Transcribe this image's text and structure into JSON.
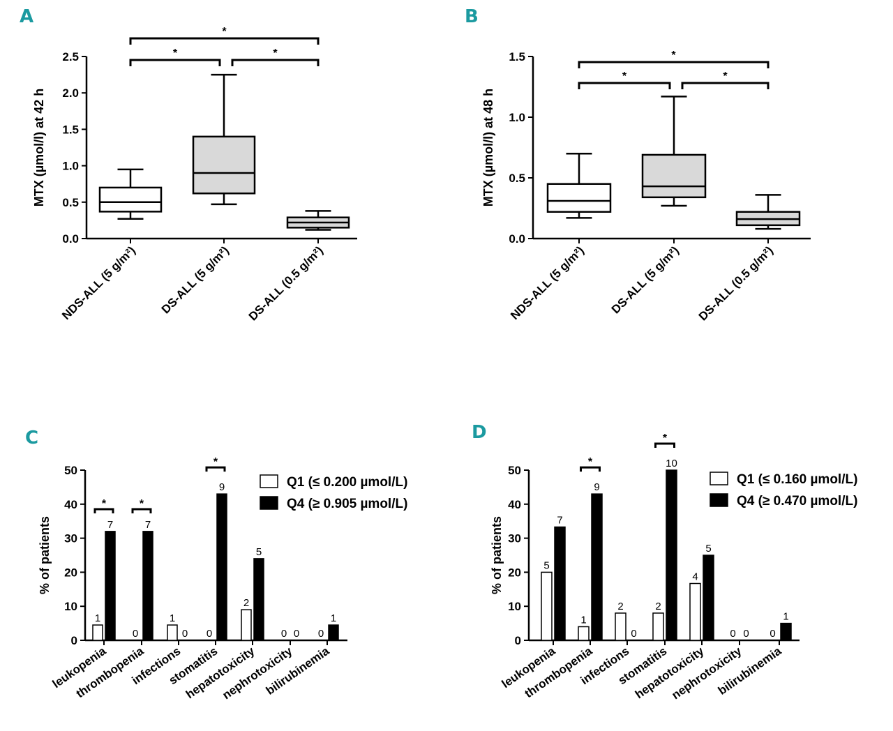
{
  "colors": {
    "panel_letter": "#1b9aa0",
    "box_fill_ds": "#d9d9d9",
    "bar_q4": "#000000",
    "bar_q1": "#ffffff"
  },
  "chart_data": [
    {
      "panel": "A",
      "type": "box",
      "ylabel": "MTX (µmol/l) at 42 h",
      "ylim": [
        0,
        2.5
      ],
      "yticks": [
        "0.0",
        "0.5",
        "1.0",
        "1.5",
        "2.0",
        "2.5"
      ],
      "categories": [
        "NDS-ALL (5 g/m²)",
        "DS-ALL (5 g/m²)",
        "DS-ALL (0.5 g/m²)"
      ],
      "boxes": [
        {
          "min": 0.27,
          "q1": 0.37,
          "median": 0.5,
          "q3": 0.7,
          "max": 0.95,
          "shaded": false
        },
        {
          "min": 0.47,
          "q1": 0.62,
          "median": 0.9,
          "q3": 1.4,
          "max": 2.25,
          "shaded": true
        },
        {
          "min": 0.12,
          "q1": 0.15,
          "median": 0.22,
          "q3": 0.29,
          "max": 0.38,
          "shaded": true
        }
      ],
      "significance": [
        {
          "from": 0,
          "to": 2,
          "label": "*"
        },
        {
          "from": 0,
          "to": 1,
          "label": "*"
        },
        {
          "from": 1,
          "to": 2,
          "label": "*"
        }
      ]
    },
    {
      "panel": "B",
      "type": "box",
      "ylabel": "MTX (µmol/l) at 48 h",
      "ylim": [
        0,
        1.5
      ],
      "yticks": [
        "0.0",
        "0.5",
        "1.0",
        "1.5"
      ],
      "categories": [
        "NDS-ALL (5 g/m²)",
        "DS-ALL (5 g/m²)",
        "DS-ALL (0.5 g/m²)"
      ],
      "boxes": [
        {
          "min": 0.17,
          "q1": 0.22,
          "median": 0.31,
          "q3": 0.45,
          "max": 0.7,
          "shaded": false
        },
        {
          "min": 0.27,
          "q1": 0.34,
          "median": 0.43,
          "q3": 0.69,
          "max": 1.17,
          "shaded": true
        },
        {
          "min": 0.08,
          "q1": 0.11,
          "median": 0.16,
          "q3": 0.22,
          "max": 0.36,
          "shaded": true
        }
      ],
      "significance": [
        {
          "from": 0,
          "to": 2,
          "label": "*"
        },
        {
          "from": 0,
          "to": 1,
          "label": "*"
        },
        {
          "from": 1,
          "to": 2,
          "label": "*"
        }
      ]
    },
    {
      "panel": "C",
      "type": "bar",
      "ylabel": "% of patients",
      "ylim": [
        0,
        50
      ],
      "yticks": [
        "0",
        "10",
        "20",
        "30",
        "40",
        "50"
      ],
      "categories": [
        "leukopenia",
        "thrombopenia",
        "infections",
        "stomatitis",
        "hepatotoxicity",
        "nephrotoxicity",
        "bilirubinemia"
      ],
      "series": [
        {
          "name": "Q1 (≤ 0.200 µmol/L)",
          "values": [
            4.5,
            0,
            4.5,
            0,
            9,
            0,
            0
          ],
          "counts": [
            "1",
            "0",
            "1",
            "0",
            "2",
            "0",
            "0"
          ]
        },
        {
          "name": "Q4 (≥ 0.905 µmol/L)",
          "values": [
            32,
            32,
            0,
            43,
            24,
            0,
            4.5
          ],
          "counts": [
            "7",
            "7",
            "0",
            "9",
            "5",
            "0",
            "1"
          ]
        }
      ],
      "significance": [
        0,
        1,
        3
      ],
      "star": "*"
    },
    {
      "panel": "D",
      "type": "bar",
      "ylabel": "% of patients",
      "ylim": [
        0,
        50
      ],
      "yticks": [
        "0",
        "10",
        "20",
        "30",
        "40",
        "50"
      ],
      "categories": [
        "leukopenia",
        "thrombopenia",
        "infections",
        "stomatitis",
        "hepatotoxicity",
        "nephrotoxicity",
        "bilirubinemia"
      ],
      "series": [
        {
          "name": "Q1 (≤ 0.160 µmol/L)",
          "values": [
            20,
            4,
            8,
            8,
            16.7,
            0,
            0
          ],
          "counts": [
            "5",
            "1",
            "2",
            "2",
            "4",
            "0",
            "0"
          ]
        },
        {
          "name": "Q4 (≥ 0.470 µmol/L)",
          "values": [
            33.3,
            43,
            0,
            50,
            25,
            0,
            5
          ],
          "counts": [
            "7",
            "9",
            "0",
            "10",
            "5",
            "0",
            "1"
          ]
        }
      ],
      "significance": [
        1,
        3
      ],
      "star": "*"
    }
  ]
}
